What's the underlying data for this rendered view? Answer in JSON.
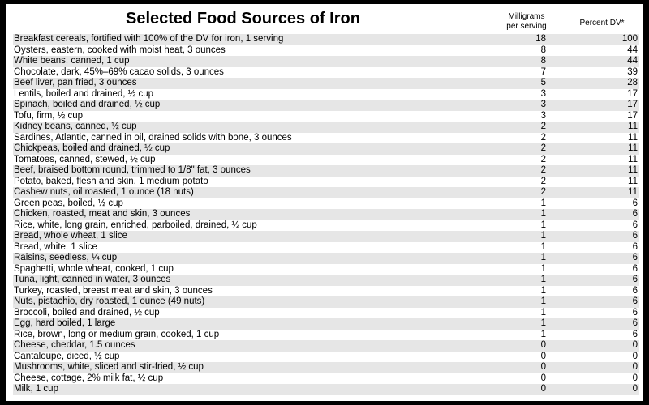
{
  "title": "Selected Food Sources of Iron",
  "columns": {
    "mg_line1": "Milligrams",
    "mg_line2": "per serving",
    "dv": "Percent DV*"
  },
  "rows": [
    {
      "food": "Breakfast cereals, fortified with 100% of the DV for iron, 1 serving",
      "mg": "18",
      "dv": "100"
    },
    {
      "food": "Oysters, eastern, cooked with moist heat, 3 ounces",
      "mg": "8",
      "dv": "44"
    },
    {
      "food": "White beans, canned, 1 cup",
      "mg": "8",
      "dv": "44"
    },
    {
      "food": "Chocolate, dark, 45%–69% cacao solids, 3 ounces",
      "mg": "7",
      "dv": "39"
    },
    {
      "food": "Beef liver, pan fried, 3 ounces",
      "mg": "5",
      "dv": "28"
    },
    {
      "food": "Lentils, boiled and drained, ½ cup",
      "mg": "3",
      "dv": "17"
    },
    {
      "food": "Spinach, boiled and drained, ½ cup",
      "mg": "3",
      "dv": "17"
    },
    {
      "food": "Tofu, firm, ½ cup",
      "mg": "3",
      "dv": "17"
    },
    {
      "food": "Kidney beans, canned, ½ cup",
      "mg": "2",
      "dv": "11"
    },
    {
      "food": "Sardines, Atlantic, canned in oil, drained solids with bone, 3 ounces",
      "mg": "2",
      "dv": "11"
    },
    {
      "food": "Chickpeas, boiled and drained, ½ cup",
      "mg": "2",
      "dv": "11"
    },
    {
      "food": "Tomatoes, canned, stewed, ½ cup",
      "mg": "2",
      "dv": "11"
    },
    {
      "food": "Beef, braised bottom round, trimmed to 1/8\" fat, 3 ounces",
      "mg": "2",
      "dv": "11"
    },
    {
      "food": "Potato, baked, flesh and skin, 1 medium potato",
      "mg": "2",
      "dv": "11"
    },
    {
      "food": "Cashew nuts, oil roasted, 1 ounce (18 nuts)",
      "mg": "2",
      "dv": "11"
    },
    {
      "food": "Green peas, boiled, ½ cup",
      "mg": "1",
      "dv": "6"
    },
    {
      "food": "Chicken, roasted, meat and skin, 3 ounces",
      "mg": "1",
      "dv": "6"
    },
    {
      "food": "Rice, white, long grain, enriched, parboiled, drained, ½ cup",
      "mg": "1",
      "dv": "6"
    },
    {
      "food": "Bread, whole wheat, 1 slice",
      "mg": "1",
      "dv": "6"
    },
    {
      "food": "Bread, white, 1 slice",
      "mg": "1",
      "dv": "6"
    },
    {
      "food": "Raisins, seedless, ¼ cup",
      "mg": "1",
      "dv": "6"
    },
    {
      "food": "Spaghetti, whole wheat, cooked, 1 cup",
      "mg": "1",
      "dv": "6"
    },
    {
      "food": "Tuna, light, canned in water, 3 ounces",
      "mg": "1",
      "dv": "6"
    },
    {
      "food": "Turkey, roasted, breast meat and skin, 3 ounces",
      "mg": "1",
      "dv": "6"
    },
    {
      "food": "Nuts, pistachio, dry roasted, 1 ounce (49 nuts)",
      "mg": "1",
      "dv": "6"
    },
    {
      "food": "Broccoli, boiled and drained, ½ cup",
      "mg": "1",
      "dv": "6"
    },
    {
      "food": "Egg, hard boiled, 1 large",
      "mg": "1",
      "dv": "6"
    },
    {
      "food": "Rice, brown, long or medium grain, cooked, 1 cup",
      "mg": "1",
      "dv": "6"
    },
    {
      "food": "Cheese, cheddar, 1.5 ounces",
      "mg": "0",
      "dv": "0"
    },
    {
      "food": "Cantaloupe, diced, ½ cup",
      "mg": "0",
      "dv": "0"
    },
    {
      "food": "Mushrooms, white, sliced and stir-fried, ½ cup",
      "mg": "0",
      "dv": "0"
    },
    {
      "food": "Cheese, cottage, 2% milk fat, ½ cup",
      "mg": "0",
      "dv": "0"
    },
    {
      "food": "Milk, 1 cup",
      "mg": "0",
      "dv": "0"
    }
  ],
  "colors": {
    "row_shade": "#e6e6e6",
    "border": "#000000"
  }
}
